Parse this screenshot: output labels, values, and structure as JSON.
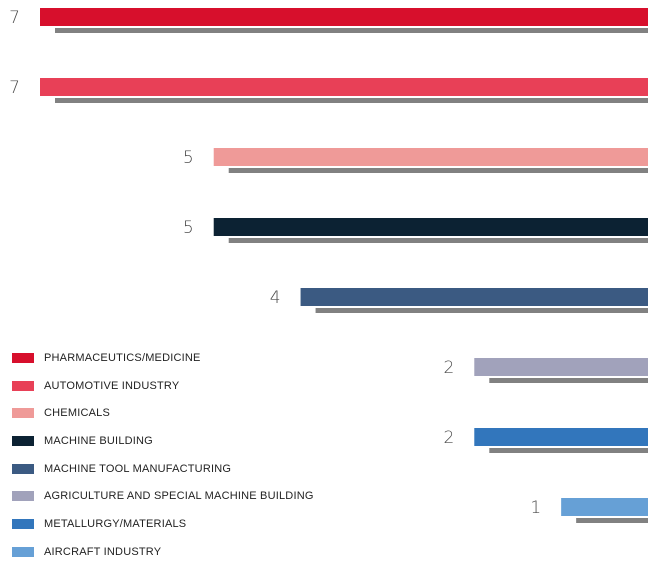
{
  "chart_data": {
    "type": "bar",
    "orientation": "horizontal",
    "title": "",
    "xlabel": "",
    "ylabel": "",
    "categories": [
      "PHARMACEUTICS/MEDICINE",
      "AUTOMOTIVE INDUSTRY",
      "CHEMICALS",
      "MACHINE BUILDING",
      "MACHINE TOOL MANUFACTURING",
      "AGRICULTURE AND SPECIAL MACHINE BUILDING",
      "METALLURGY/MATERIALS",
      "AIRCRAFT INDUSTRY"
    ],
    "values": [
      7,
      7,
      5,
      5,
      4,
      2,
      2,
      1
    ],
    "value_labels": [
      "7",
      "7",
      "5",
      "5",
      "4",
      "2",
      "2",
      "1"
    ],
    "colors": [
      "#d70f2c",
      "#e84057",
      "#ef9a98",
      "#0c2233",
      "#3b5a82",
      "#a1a2bb",
      "#3276bc",
      "#66a0d6"
    ],
    "xlim": [
      0,
      7
    ],
    "grid": false,
    "legend_position": "bottom-left",
    "bars_aligned": "right"
  }
}
